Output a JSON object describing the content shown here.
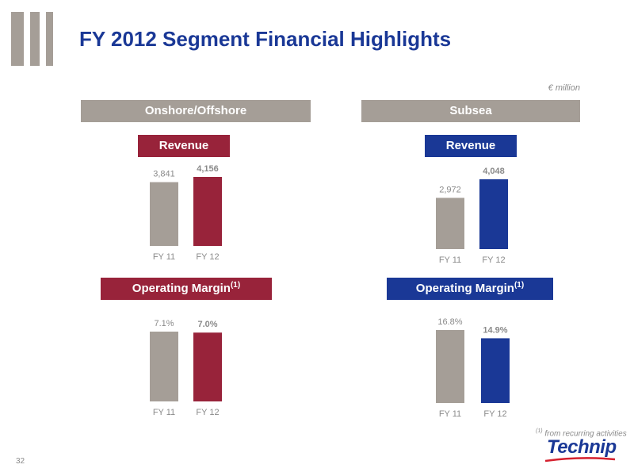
{
  "header": {
    "title": "FY 2012 Segment Financial Highlights",
    "unit": "€ million"
  },
  "segments": [
    {
      "name": "Onshore/Offshore",
      "revenue_label": "Revenue",
      "margin_label": "Operating Margin",
      "margin_sup": "(1)"
    },
    {
      "name": "Subsea",
      "revenue_label": "Revenue",
      "margin_label": "Operating Margin",
      "margin_sup": "(1)"
    }
  ],
  "footnote": {
    "sup": "(1)",
    "text": "from recurring activities"
  },
  "page_number": "32",
  "logo": {
    "text": "Technip"
  },
  "colors": {
    "grey": "#a59e97",
    "onshore": "#98233a",
    "subsea": "#1a3896",
    "title": "#1a3896",
    "value_text": "#8a8a8a"
  },
  "chart_data": [
    {
      "type": "bar",
      "title": "Revenue",
      "segment": "Onshore/Offshore",
      "categories": [
        "FY 11",
        "FY 12"
      ],
      "values": [
        3841,
        4156
      ],
      "value_labels": [
        "3,841",
        "4,156"
      ]
    },
    {
      "type": "bar",
      "title": "Revenue",
      "segment": "Subsea",
      "categories": [
        "FY 11",
        "FY 12"
      ],
      "values": [
        2972,
        4048
      ],
      "value_labels": [
        "2,972",
        "4,048"
      ]
    },
    {
      "type": "bar",
      "title": "Operating Margin",
      "segment": "Onshore/Offshore",
      "categories": [
        "FY 11",
        "FY 12"
      ],
      "values": [
        7.1,
        7.0
      ],
      "value_labels": [
        "7.1%",
        "7.0%"
      ]
    },
    {
      "type": "bar",
      "title": "Operating Margin",
      "segment": "Subsea",
      "categories": [
        "FY 11",
        "FY 12"
      ],
      "values": [
        16.8,
        14.9
      ],
      "value_labels": [
        "16.8%",
        "14.9%"
      ]
    }
  ]
}
